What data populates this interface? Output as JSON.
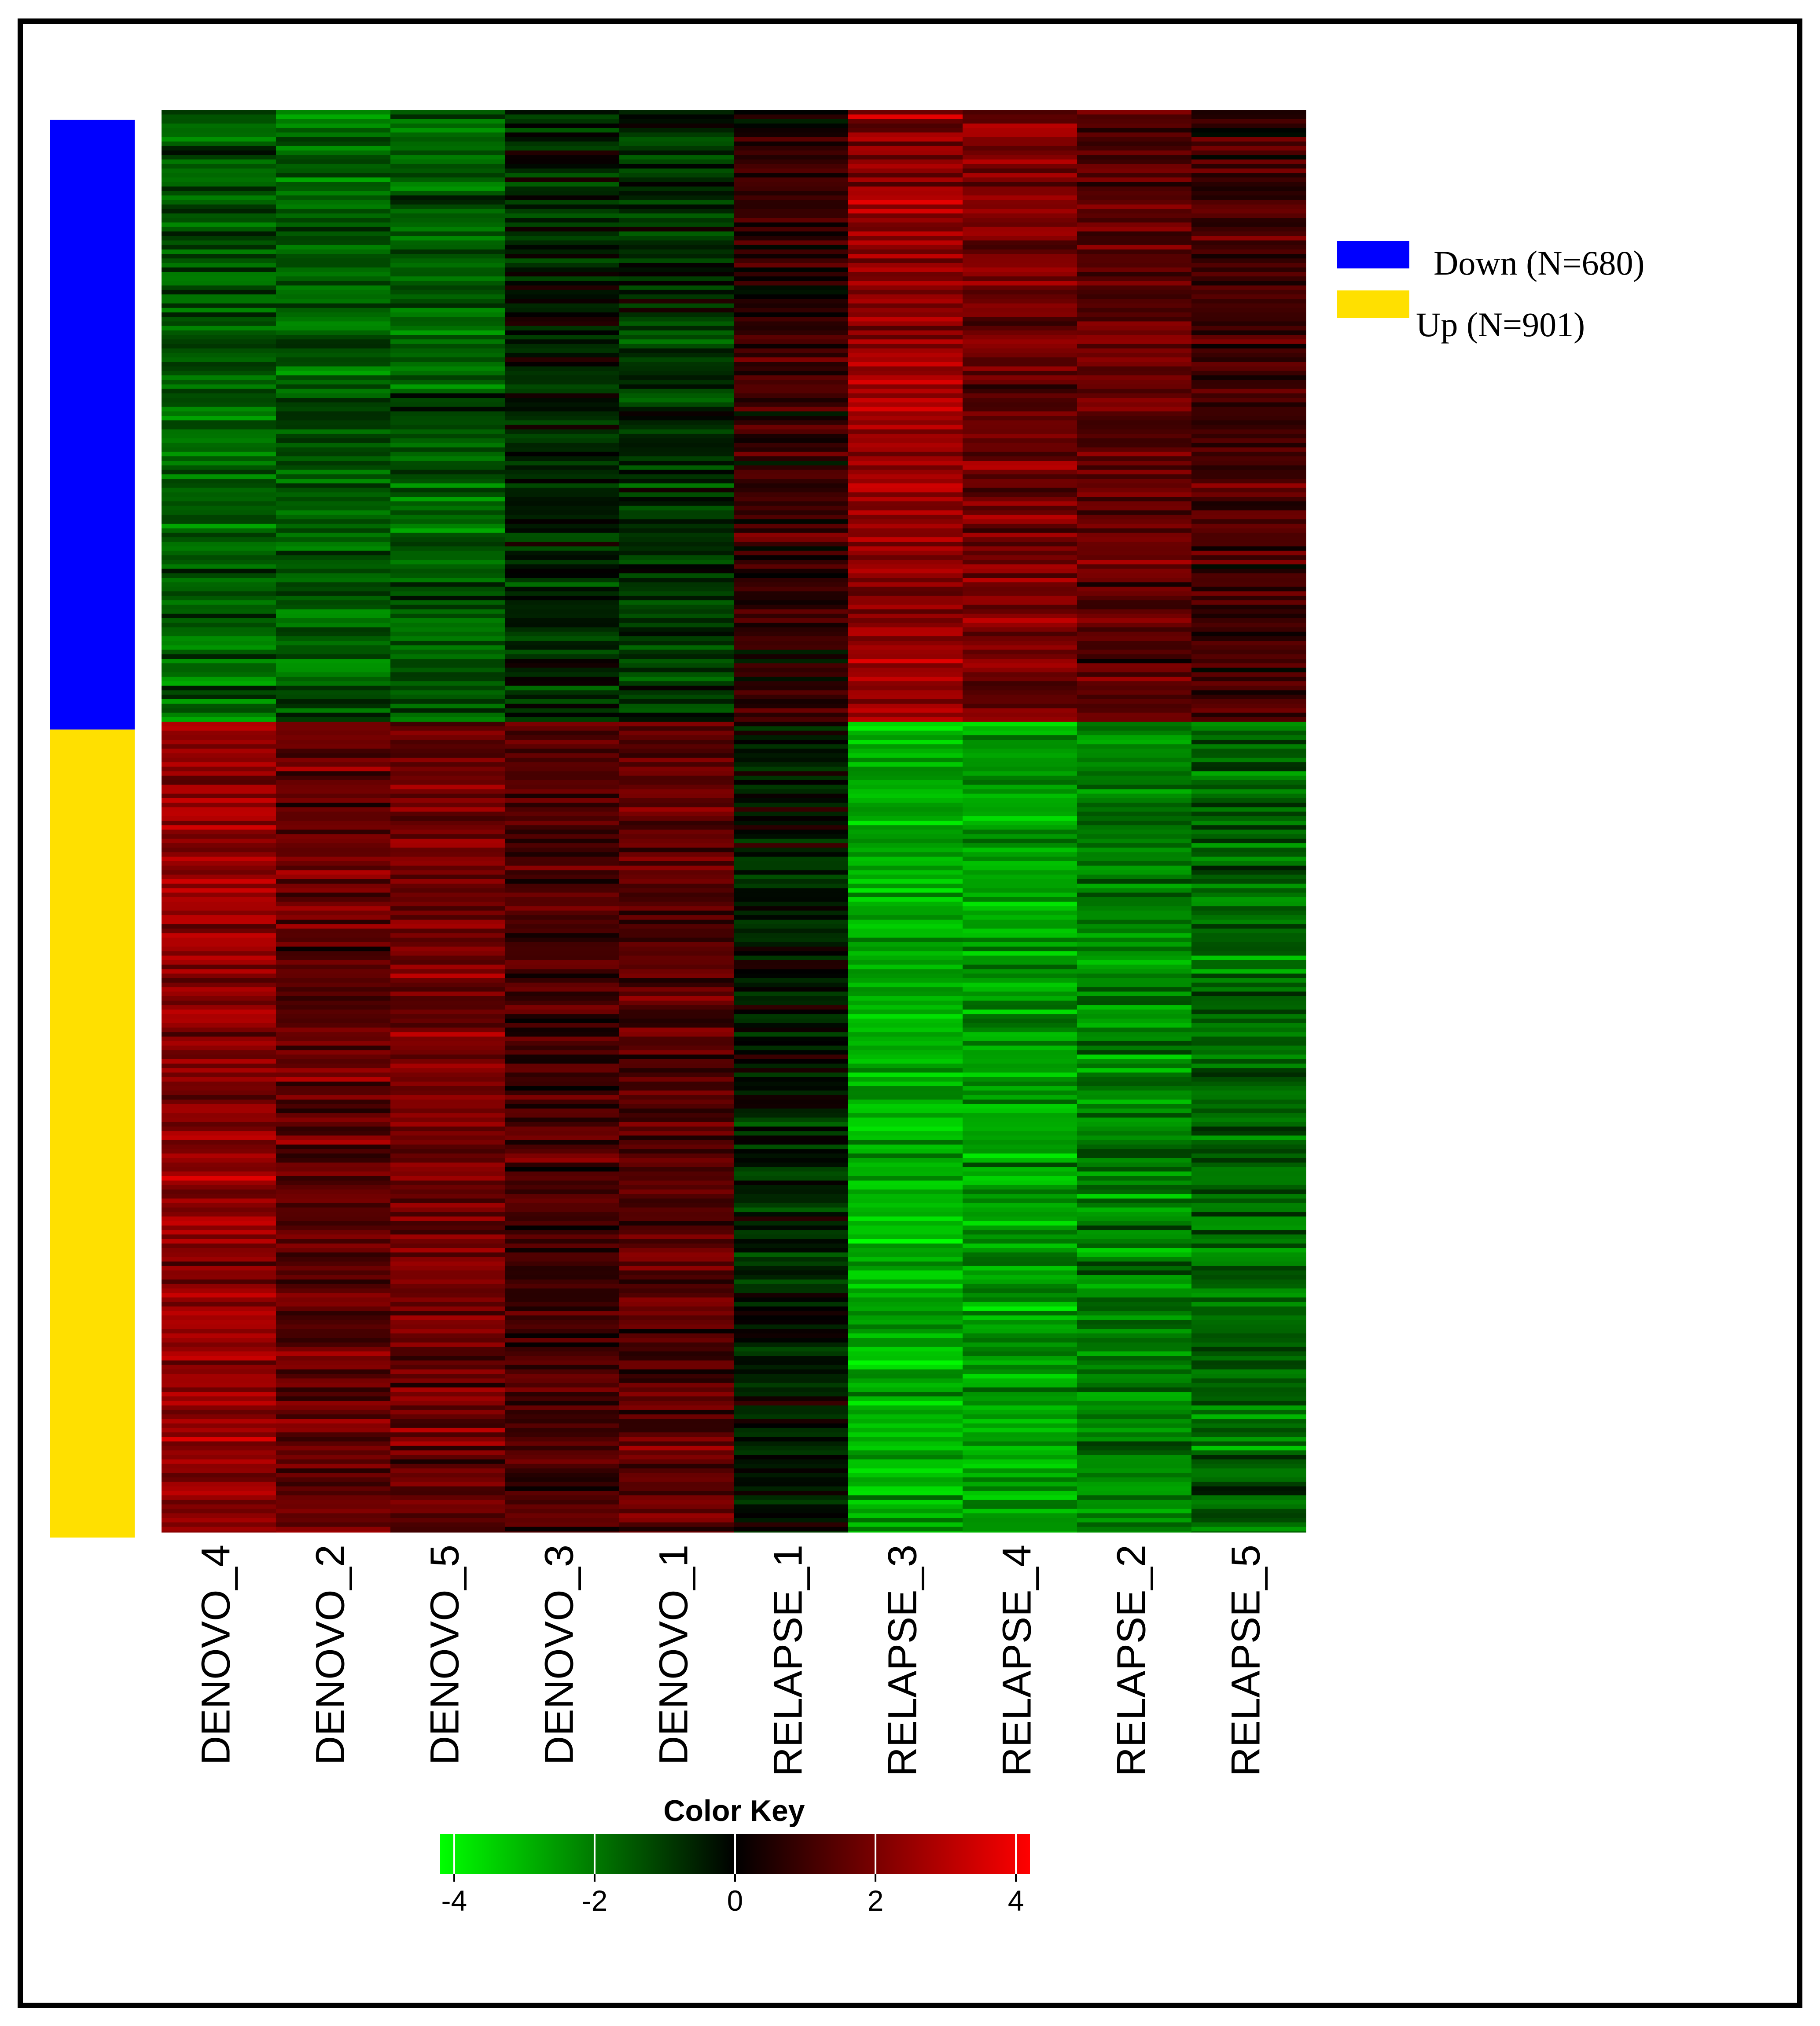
{
  "chart_data": {
    "type": "heatmap",
    "title": "",
    "xlabel": "",
    "ylabel": "",
    "columns": [
      "DENOVO_4",
      "DENOVO_2",
      "DENOVO_5",
      "DENOVO_3",
      "DENOVO_1",
      "RELAPSE_1",
      "RELAPSE_3",
      "RELAPSE_4",
      "RELAPSE_2",
      "RELAPSE_5"
    ],
    "row_groups": [
      {
        "label": "Down (N=680)",
        "name": "Down",
        "count": 680,
        "color": "#0000ff",
        "mean_values": [
          -1.2,
          -1.3,
          -1.2,
          -0.4,
          -0.6,
          0.6,
          2.0,
          1.6,
          1.3,
          0.8
        ]
      },
      {
        "label": "Up (N=901)",
        "name": "Up",
        "count": 901,
        "color": "#ffe000",
        "mean_values": [
          1.9,
          1.3,
          1.5,
          0.9,
          1.2,
          -0.3,
          -2.3,
          -2.1,
          -1.7,
          -1.4
        ]
      }
    ],
    "color_key": {
      "title": "Color Key",
      "ticks": [
        -4,
        -2,
        0,
        2,
        4
      ],
      "tick_labels": [
        "-4",
        "-2",
        "0",
        "2",
        "4"
      ],
      "range": [
        -4.2,
        4.2
      ],
      "low_color": "#00ff00",
      "mid_color": "#000000",
      "high_color": "#ff0000"
    }
  }
}
